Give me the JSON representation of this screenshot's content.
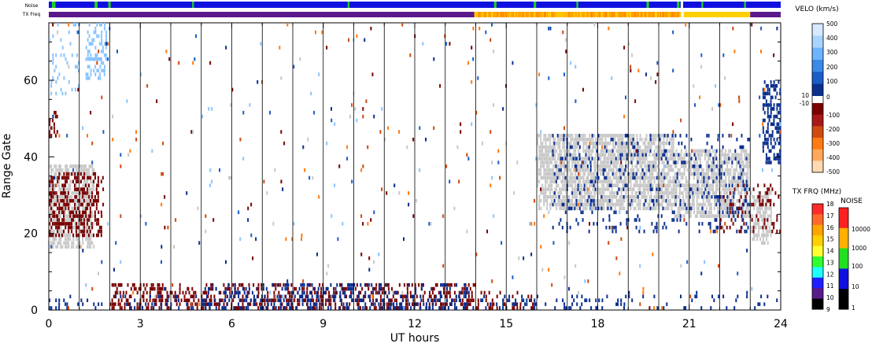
{
  "chart_data": {
    "type": "scatter",
    "subtype": "range-time velocity plot",
    "xlabel": "UT hours",
    "ylabel": "Range Gate",
    "xlim": [
      0,
      24
    ],
    "ylim": [
      0,
      75
    ],
    "x_ticks": [
      "0",
      "3",
      "6",
      "9",
      "12",
      "15",
      "18",
      "21",
      "24"
    ],
    "x_tick_values": [
      0,
      3,
      6,
      9,
      12,
      15,
      18,
      21,
      24
    ],
    "y_ticks": [
      "0",
      "20",
      "40",
      "60"
    ],
    "y_tick_values": [
      0,
      20,
      40,
      60
    ],
    "hour_gridlines": true,
    "noise_bar": {
      "label": "Noise",
      "base_color": "#1010e0",
      "segments": [
        {
          "x": 0.1,
          "w": 0.12,
          "color": "#20d020"
        },
        {
          "x": 1.5,
          "w": 0.1,
          "color": "#20d020"
        },
        {
          "x": 1.95,
          "w": 0.08,
          "color": "#20d020"
        },
        {
          "x": 4.7,
          "w": 0.06,
          "color": "#20d020"
        },
        {
          "x": 9.8,
          "w": 0.06,
          "color": "#20d020"
        },
        {
          "x": 14.6,
          "w": 0.08,
          "color": "#20d020"
        },
        {
          "x": 15.9,
          "w": 0.08,
          "color": "#20d020"
        },
        {
          "x": 17.3,
          "w": 0.06,
          "color": "#20d020"
        },
        {
          "x": 19.6,
          "w": 0.08,
          "color": "#20d020"
        },
        {
          "x": 20.6,
          "w": 0.08,
          "color": "#20d020"
        },
        {
          "x": 20.72,
          "w": 0.08,
          "color": "#ffffff"
        },
        {
          "x": 21.4,
          "w": 0.06,
          "color": "#20d020"
        },
        {
          "x": 22.8,
          "w": 0.06,
          "color": "#20d020"
        }
      ]
    },
    "txfreq_bar": {
      "label": "TX Freq",
      "segments": [
        {
          "start": 0,
          "end": 13.95,
          "color": "#5a1a8c"
        },
        {
          "start": 13.95,
          "end": 20.72,
          "color": "#ffa500"
        },
        {
          "start": 20.72,
          "end": 20.82,
          "color": "#ffffff"
        },
        {
          "start": 20.82,
          "end": 23.0,
          "color": "#ffd000"
        },
        {
          "start": 23.0,
          "end": 24.0,
          "color": "#5a1a8c"
        }
      ]
    },
    "velocity_colorbar": {
      "title": "VELO (km/s)",
      "ticks": [
        "500",
        "400",
        "300",
        "200",
        "100",
        "0",
        "10",
        "-10",
        "-100",
        "-200",
        "-300",
        "-400",
        "-500"
      ],
      "positive_colors": [
        "#d6eaff",
        "#a8d4ff",
        "#6cb4ff",
        "#3a8ae8",
        "#1a5cc8",
        "#0a2f8f"
      ],
      "negative_colors": [
        "#7a0000",
        "#a81818",
        "#d04a10",
        "#ff7a10",
        "#ffa85a",
        "#ffd9b0"
      ]
    },
    "txfreq_colorbar": {
      "title": "TX FRQ (MHz)",
      "ticks": [
        "18",
        "17",
        "16",
        "15",
        "14",
        "13",
        "12",
        "11",
        "10",
        "9"
      ],
      "colors": [
        "#ff2a2a",
        "#ff6a2a",
        "#ffa500",
        "#ffd000",
        "#ffff30",
        "#30ff30",
        "#20ffff",
        "#2020ff",
        "#5a1a8c",
        "#000000"
      ]
    },
    "noise_colorbar": {
      "title": "NOISE",
      "ticks": [
        "10000",
        "1000",
        "100",
        "10",
        "1"
      ],
      "colors": [
        "#ff2020",
        "#ffb000",
        "#20e020",
        "#1010e0",
        "#000000"
      ]
    },
    "series": [
      {
        "cls": "ground",
        "color": "#c8c8c8",
        "regions": [
          [
            0.0,
            1.5,
            16,
            38,
            0.65
          ],
          [
            16.0,
            20.5,
            26,
            46,
            0.75
          ],
          [
            20.5,
            23.0,
            24,
            42,
            0.7
          ],
          [
            23.0,
            23.7,
            17,
            31,
            0.55
          ]
        ]
      },
      {
        "cls": "neg_strong",
        "color": "#7a0000",
        "regions": [
          [
            0.0,
            1.8,
            19,
            36,
            0.45
          ],
          [
            2.0,
            14.0,
            0,
            7,
            0.35
          ],
          [
            14.0,
            16.0,
            0,
            5,
            0.25
          ],
          [
            22.0,
            24.0,
            20,
            33,
            0.2
          ],
          [
            0.0,
            0.3,
            45,
            52,
            0.4
          ]
        ]
      },
      {
        "cls": "pos_strong",
        "color": "#0a2f8f",
        "regions": [
          [
            5.0,
            13.8,
            0,
            7,
            0.22
          ],
          [
            23.4,
            24.0,
            38,
            60,
            0.5
          ],
          [
            16.5,
            23.0,
            20,
            46,
            0.12
          ],
          [
            0.0,
            24.0,
            0,
            4,
            0.12
          ]
        ]
      },
      {
        "cls": "pos_light",
        "color": "#8ac4ff",
        "regions": [
          [
            1.2,
            1.9,
            60,
            75,
            0.35
          ],
          [
            0.0,
            1.0,
            55,
            75,
            0.12
          ]
        ]
      },
      {
        "cls": "scatter_mixed",
        "color": "mixed",
        "regions": [
          [
            0.0,
            24.0,
            0,
            75,
            0.012
          ]
        ]
      }
    ]
  }
}
